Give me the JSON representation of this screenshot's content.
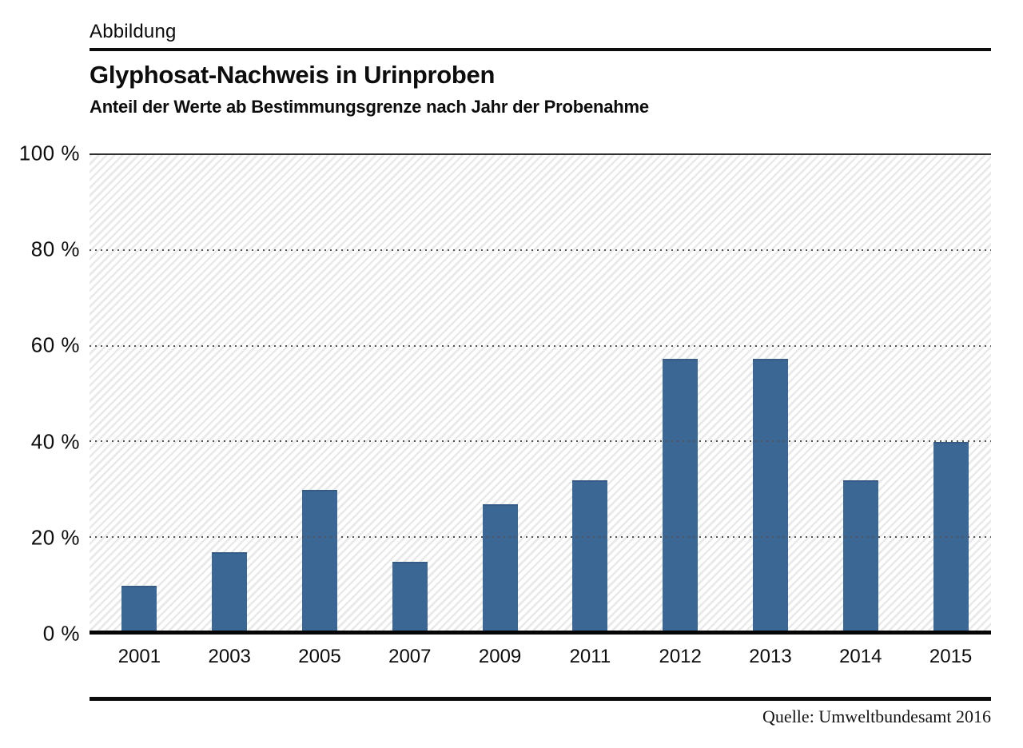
{
  "header": {
    "figure_label": "Abbildung",
    "title": "Glyphosat-Nachweis in Urinproben",
    "subtitle": "Anteil der Werte ab Bestimmungsgrenze nach Jahr der Probenahme"
  },
  "footer": {
    "source": "Quelle: Umweltbundesamt 2016"
  },
  "chart_data": {
    "type": "bar",
    "title": "Glyphosat-Nachweis in Urinproben",
    "subtitle": "Anteil der Werte ab Bestimmungsgrenze nach Jahr der Probenahme",
    "categories": [
      "2001",
      "2003",
      "2005",
      "2007",
      "2009",
      "2011",
      "2012",
      "2013",
      "2014",
      "2015"
    ],
    "values": [
      10,
      17,
      30,
      15,
      27,
      32,
      57.5,
      57.5,
      32,
      40
    ],
    "unit": "%",
    "xlabel": "Jahr der Probenahme",
    "ylabel": "Anteil der Werte ab Bestimmungsgrenze",
    "ylim": [
      0,
      100
    ],
    "ytick_values": [
      0,
      20,
      40,
      60,
      80,
      100
    ],
    "ytick_labels": [
      "0 %",
      "20 %",
      "40 %",
      "60 %",
      "80 %",
      "100 %"
    ],
    "grid": "horizontal dotted gridlines at 20/40/60/80, solid line at 100, thick solid baseline at 0",
    "legend": "none",
    "bar_color": "#3b6795",
    "plot_background": "white with light gray diagonal hatch stripes",
    "source": "Quelle: Umweltbundesamt 2016"
  }
}
